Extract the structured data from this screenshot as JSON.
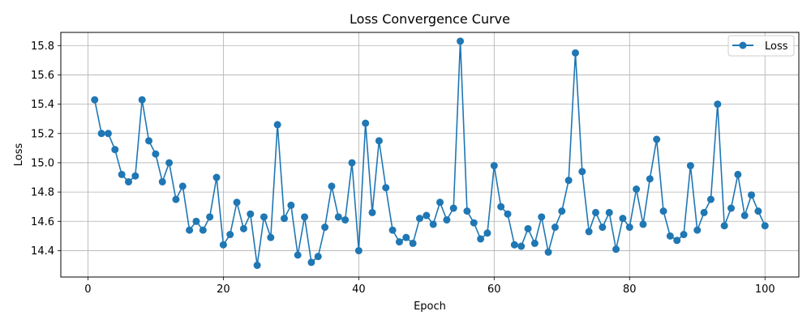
{
  "chart_data": {
    "type": "line",
    "title": "Loss Convergence Curve",
    "xlabel": "Epoch",
    "ylabel": "Loss",
    "xlim": [
      -4,
      105
    ],
    "ylim": [
      14.22,
      15.89
    ],
    "xticks": [
      0,
      20,
      40,
      60,
      80,
      100
    ],
    "yticks": [
      14.4,
      14.6,
      14.8,
      15.0,
      15.2,
      15.4,
      15.6,
      15.8
    ],
    "xtick_labels": [
      "0",
      "20",
      "40",
      "60",
      "80",
      "100"
    ],
    "ytick_labels": [
      "14.4",
      "14.6",
      "14.8",
      "15.0",
      "15.2",
      "15.4",
      "15.6",
      "15.8"
    ],
    "grid": true,
    "legend_position": "top-right",
    "series": [
      {
        "name": "Loss",
        "color": "#1f77b4",
        "marker": "circle",
        "x": [
          1,
          2,
          3,
          4,
          5,
          6,
          7,
          8,
          9,
          10,
          11,
          12,
          13,
          14,
          15,
          16,
          17,
          18,
          19,
          20,
          21,
          22,
          23,
          24,
          25,
          26,
          27,
          28,
          29,
          30,
          31,
          32,
          33,
          34,
          35,
          36,
          37,
          38,
          39,
          40,
          41,
          42,
          43,
          44,
          45,
          46,
          47,
          48,
          49,
          50,
          51,
          52,
          53,
          54,
          55,
          56,
          57,
          58,
          59,
          60,
          61,
          62,
          63,
          64,
          65,
          66,
          67,
          68,
          69,
          70,
          71,
          72,
          73,
          74,
          75,
          76,
          77,
          78,
          79,
          80,
          81,
          82,
          83,
          84,
          85,
          86,
          87,
          88,
          89,
          90,
          91,
          92,
          93,
          94,
          95,
          96,
          97,
          98,
          99,
          100
        ],
        "values": [
          15.43,
          15.2,
          15.2,
          15.09,
          14.92,
          14.87,
          14.91,
          15.43,
          15.15,
          15.06,
          14.87,
          15.0,
          14.75,
          14.84,
          14.54,
          14.6,
          14.54,
          14.63,
          14.9,
          14.44,
          14.51,
          14.73,
          14.55,
          14.65,
          14.3,
          14.63,
          14.49,
          15.26,
          14.62,
          14.71,
          14.37,
          14.63,
          14.32,
          14.36,
          14.56,
          14.84,
          14.63,
          14.61,
          15.0,
          14.4,
          15.27,
          14.66,
          15.15,
          14.83,
          14.54,
          14.46,
          14.49,
          14.45,
          14.62,
          14.64,
          14.58,
          14.73,
          14.61,
          14.69,
          15.83,
          14.67,
          14.59,
          14.48,
          14.52,
          14.98,
          14.7,
          14.65,
          14.44,
          14.43,
          14.55,
          14.45,
          14.63,
          14.39,
          14.56,
          14.67,
          14.88,
          15.75,
          14.94,
          14.53,
          14.66,
          14.56,
          14.66,
          14.41,
          14.62,
          14.56,
          14.82,
          14.58,
          14.89,
          15.16,
          14.67,
          14.5,
          14.47,
          14.51,
          14.98,
          14.54,
          14.66,
          14.75,
          15.4,
          14.57,
          14.69,
          14.92,
          14.64,
          14.78,
          14.67,
          14.57
        ]
      }
    ]
  }
}
